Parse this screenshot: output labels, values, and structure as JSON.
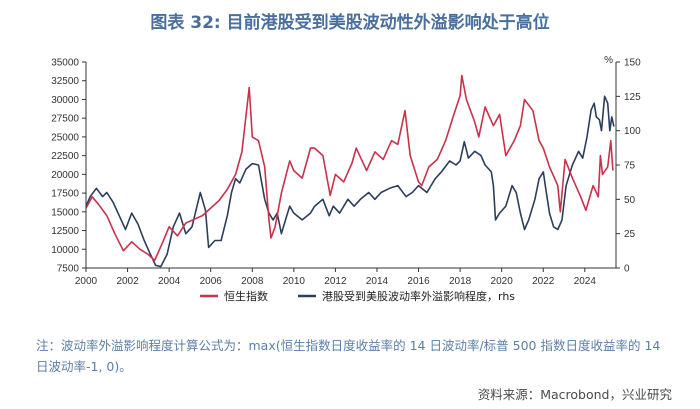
{
  "title": "图表 32: 目前港股受到美股波动性外溢影响处于高位",
  "note": "注：波动率外溢影响程度计算公式为：max(恒生指数日度收益率的 14 日波动率/标普 500 指数日度收益率的 14 日波动率-1, 0)。",
  "source": "资料来源：Macrobond，兴业研究",
  "colors": {
    "hsi": "#c8324a",
    "spill": "#2c3e5c",
    "axis": "#333333"
  },
  "chart_data": {
    "type": "line",
    "left_unit_label": "",
    "right_unit_label": "%",
    "left_axis": {
      "min": 7500,
      "max": 35000,
      "ticks": [
        7500,
        10000,
        12500,
        15000,
        17500,
        20000,
        22500,
        25000,
        27500,
        30000,
        32500,
        35000
      ]
    },
    "right_axis": {
      "min": 0,
      "max": 150,
      "ticks": [
        0,
        25,
        50,
        75,
        100,
        125,
        150
      ]
    },
    "x_axis": {
      "min": 2000,
      "max": 2025.5,
      "ticks": [
        2000,
        2002,
        2004,
        2006,
        2008,
        2010,
        2012,
        2014,
        2016,
        2018,
        2020,
        2022,
        2024
      ]
    },
    "series": [
      {
        "name": "恒生指数",
        "axis": "left",
        "points": [
          [
            2000,
            15500
          ],
          [
            2000.3,
            17000
          ],
          [
            2000.6,
            16000
          ],
          [
            2001,
            14500
          ],
          [
            2001.4,
            12000
          ],
          [
            2001.8,
            9800
          ],
          [
            2002.2,
            11000
          ],
          [
            2002.6,
            10000
          ],
          [
            2003,
            9300
          ],
          [
            2003.3,
            8500
          ],
          [
            2003.7,
            11000
          ],
          [
            2004,
            13000
          ],
          [
            2004.4,
            11800
          ],
          [
            2004.8,
            13500
          ],
          [
            2005.2,
            14000
          ],
          [
            2005.6,
            14500
          ],
          [
            2006,
            15500
          ],
          [
            2006.4,
            16500
          ],
          [
            2006.8,
            18000
          ],
          [
            2007.2,
            20000
          ],
          [
            2007.5,
            23000
          ],
          [
            2007.85,
            31600
          ],
          [
            2008,
            25000
          ],
          [
            2008.3,
            24500
          ],
          [
            2008.6,
            21000
          ],
          [
            2008.8,
            14000
          ],
          [
            2008.9,
            11500
          ],
          [
            2009.1,
            13000
          ],
          [
            2009.4,
            17500
          ],
          [
            2009.8,
            21800
          ],
          [
            2010,
            20500
          ],
          [
            2010.4,
            19500
          ],
          [
            2010.8,
            23500
          ],
          [
            2011,
            23500
          ],
          [
            2011.4,
            22500
          ],
          [
            2011.75,
            17200
          ],
          [
            2012,
            20000
          ],
          [
            2012.4,
            19000
          ],
          [
            2012.8,
            21500
          ],
          [
            2013,
            23500
          ],
          [
            2013.5,
            20500
          ],
          [
            2013.9,
            23000
          ],
          [
            2014.3,
            22000
          ],
          [
            2014.7,
            24500
          ],
          [
            2015,
            24000
          ],
          [
            2015.35,
            28500
          ],
          [
            2015.6,
            22500
          ],
          [
            2016,
            19000
          ],
          [
            2016.15,
            18500
          ],
          [
            2016.5,
            21000
          ],
          [
            2016.9,
            22000
          ],
          [
            2017.3,
            24500
          ],
          [
            2017.7,
            28000
          ],
          [
            2018,
            30500
          ],
          [
            2018.08,
            33200
          ],
          [
            2018.3,
            30000
          ],
          [
            2018.7,
            27000
          ],
          [
            2018.9,
            25000
          ],
          [
            2019.2,
            29000
          ],
          [
            2019.6,
            26500
          ],
          [
            2019.9,
            28000
          ],
          [
            2020.2,
            22500
          ],
          [
            2020.6,
            24500
          ],
          [
            2020.9,
            26500
          ],
          [
            2021.1,
            30000
          ],
          [
            2021.5,
            28500
          ],
          [
            2021.8,
            24500
          ],
          [
            2022,
            23500
          ],
          [
            2022.3,
            21000
          ],
          [
            2022.7,
            18500
          ],
          [
            2022.82,
            15000
          ],
          [
            2023.05,
            22000
          ],
          [
            2023.4,
            19500
          ],
          [
            2023.8,
            17000
          ],
          [
            2024.05,
            15200
          ],
          [
            2024.4,
            18500
          ],
          [
            2024.65,
            17000
          ],
          [
            2024.75,
            22500
          ],
          [
            2024.85,
            20000
          ],
          [
            2025.1,
            21000
          ],
          [
            2025.25,
            24500
          ],
          [
            2025.35,
            20500
          ]
        ]
      },
      {
        "name": "港股受到美股波动率外溢影响程度，rhs",
        "axis": "right",
        "points": [
          [
            2000,
            45
          ],
          [
            2000.2,
            52
          ],
          [
            2000.5,
            58
          ],
          [
            2000.8,
            52
          ],
          [
            2001,
            55
          ],
          [
            2001.3,
            48
          ],
          [
            2001.6,
            38
          ],
          [
            2001.9,
            28
          ],
          [
            2002.2,
            40
          ],
          [
            2002.5,
            32
          ],
          [
            2002.8,
            20
          ],
          [
            2003.1,
            10
          ],
          [
            2003.35,
            2
          ],
          [
            2003.6,
            1
          ],
          [
            2003.9,
            10
          ],
          [
            2004.2,
            30
          ],
          [
            2004.5,
            40
          ],
          [
            2004.8,
            25
          ],
          [
            2005.1,
            30
          ],
          [
            2005.5,
            55
          ],
          [
            2005.75,
            42
          ],
          [
            2005.9,
            15
          ],
          [
            2006.2,
            20
          ],
          [
            2006.5,
            20
          ],
          [
            2006.8,
            38
          ],
          [
            2007,
            55
          ],
          [
            2007.2,
            65
          ],
          [
            2007.4,
            62
          ],
          [
            2007.7,
            72
          ],
          [
            2008,
            76
          ],
          [
            2008.3,
            75
          ],
          [
            2008.6,
            50
          ],
          [
            2008.8,
            40
          ],
          [
            2009,
            35
          ],
          [
            2009.2,
            40
          ],
          [
            2009.4,
            25
          ],
          [
            2009.6,
            35
          ],
          [
            2009.8,
            45
          ],
          [
            2010,
            40
          ],
          [
            2010.4,
            35
          ],
          [
            2010.8,
            40
          ],
          [
            2011,
            45
          ],
          [
            2011.4,
            50
          ],
          [
            2011.7,
            38
          ],
          [
            2011.9,
            45
          ],
          [
            2012.2,
            40
          ],
          [
            2012.6,
            50
          ],
          [
            2012.9,
            45
          ],
          [
            2013.2,
            50
          ],
          [
            2013.6,
            55
          ],
          [
            2013.9,
            50
          ],
          [
            2014.2,
            55
          ],
          [
            2014.6,
            58
          ],
          [
            2015,
            60
          ],
          [
            2015.4,
            52
          ],
          [
            2015.7,
            55
          ],
          [
            2016,
            60
          ],
          [
            2016.4,
            55
          ],
          [
            2016.8,
            65
          ],
          [
            2017.1,
            70
          ],
          [
            2017.5,
            78
          ],
          [
            2017.8,
            75
          ],
          [
            2018,
            78
          ],
          [
            2018.2,
            92
          ],
          [
            2018.4,
            80
          ],
          [
            2018.7,
            85
          ],
          [
            2019,
            82
          ],
          [
            2019.2,
            75
          ],
          [
            2019.5,
            70
          ],
          [
            2019.6,
            60
          ],
          [
            2019.7,
            35
          ],
          [
            2019.9,
            40
          ],
          [
            2020.2,
            45
          ],
          [
            2020.5,
            60
          ],
          [
            2020.7,
            55
          ],
          [
            2020.9,
            40
          ],
          [
            2021.1,
            28
          ],
          [
            2021.3,
            35
          ],
          [
            2021.6,
            50
          ],
          [
            2021.8,
            65
          ],
          [
            2022,
            70
          ],
          [
            2022.1,
            60
          ],
          [
            2022.3,
            40
          ],
          [
            2022.5,
            30
          ],
          [
            2022.7,
            28
          ],
          [
            2022.9,
            35
          ],
          [
            2023.1,
            60
          ],
          [
            2023.4,
            75
          ],
          [
            2023.7,
            85
          ],
          [
            2023.9,
            80
          ],
          [
            2024.1,
            95
          ],
          [
            2024.3,
            115
          ],
          [
            2024.45,
            120
          ],
          [
            2024.55,
            110
          ],
          [
            2024.7,
            108
          ],
          [
            2024.8,
            100
          ],
          [
            2024.95,
            125
          ],
          [
            2025.1,
            120
          ],
          [
            2025.2,
            100
          ],
          [
            2025.3,
            110
          ],
          [
            2025.4,
            103
          ]
        ]
      }
    ],
    "legend": [
      "恒生指数",
      "港股受到美股波动率外溢影响程度，rhs"
    ],
    "legend_position": "bottom"
  }
}
